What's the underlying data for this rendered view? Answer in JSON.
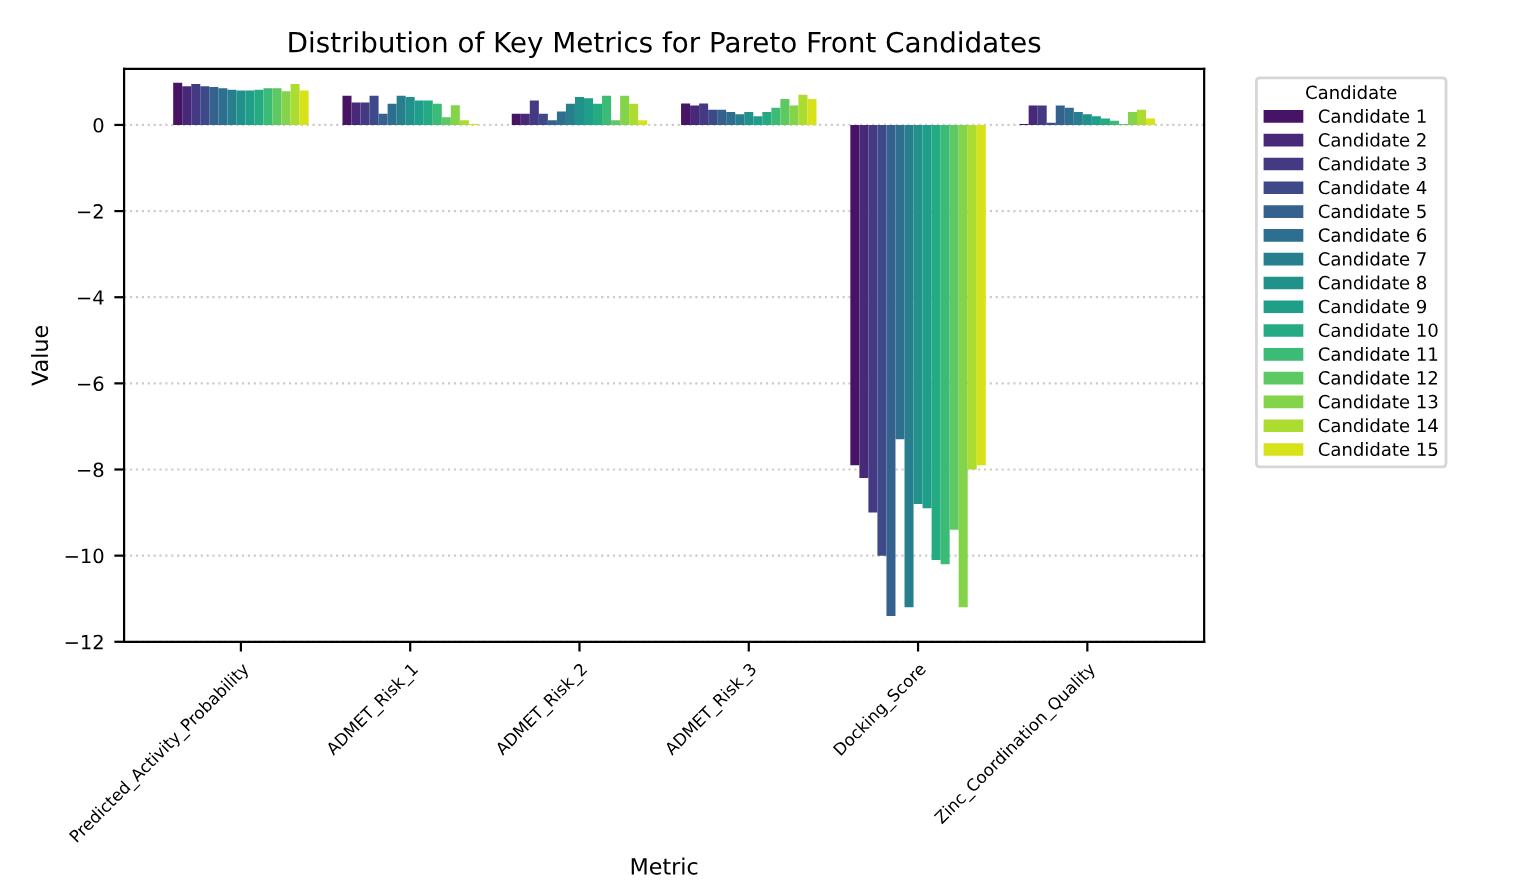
{
  "chart_data": {
    "type": "bar",
    "title": "Distribution of Key Metrics for Pareto Front Candidates",
    "xlabel": "Metric",
    "ylabel": "Value",
    "legend_title": "Candidate",
    "categories": [
      "Predicted_Activity_Probability",
      "ADMET_Risk_1",
      "ADMET_Risk_2",
      "ADMET_Risk_3",
      "Docking_Score",
      "Zinc_Coordination_Quality"
    ],
    "series": [
      {
        "name": "Candidate 1",
        "color": "#471365",
        "values": [
          0.98,
          0.68,
          0.26,
          0.5,
          -7.9,
          0.02
        ]
      },
      {
        "name": "Candidate 2",
        "color": "#482878",
        "values": [
          0.9,
          0.52,
          0.26,
          0.45,
          -8.2,
          0.45
        ]
      },
      {
        "name": "Candidate 3",
        "color": "#443983",
        "values": [
          0.95,
          0.52,
          0.57,
          0.5,
          -9.0,
          0.45
        ]
      },
      {
        "name": "Candidate 4",
        "color": "#3e4989",
        "values": [
          0.9,
          0.68,
          0.26,
          0.35,
          -10.0,
          0.05
        ]
      },
      {
        "name": "Candidate 5",
        "color": "#34618d",
        "values": [
          0.88,
          0.26,
          0.11,
          0.35,
          -11.4,
          0.45
        ]
      },
      {
        "name": "Candidate 6",
        "color": "#2e6e8e",
        "values": [
          0.85,
          0.49,
          0.31,
          0.3,
          -7.3,
          0.4
        ]
      },
      {
        "name": "Candidate 7",
        "color": "#277f8e",
        "values": [
          0.82,
          0.68,
          0.49,
          0.25,
          -11.2,
          0.3
        ]
      },
      {
        "name": "Candidate 8",
        "color": "#21918c",
        "values": [
          0.8,
          0.65,
          0.65,
          0.3,
          -8.8,
          0.25
        ]
      },
      {
        "name": "Candidate 9",
        "color": "#1f9e89",
        "values": [
          0.8,
          0.57,
          0.62,
          0.2,
          -8.9,
          0.2
        ]
      },
      {
        "name": "Candidate 10",
        "color": "#25ab82",
        "values": [
          0.82,
          0.57,
          0.49,
          0.3,
          -10.1,
          0.15
        ]
      },
      {
        "name": "Candidate 11",
        "color": "#3bbb75",
        "values": [
          0.85,
          0.49,
          0.68,
          0.4,
          -10.2,
          0.1
        ]
      },
      {
        "name": "Candidate 12",
        "color": "#5ec962",
        "values": [
          0.85,
          0.18,
          0.11,
          0.6,
          -9.4,
          0.02
        ]
      },
      {
        "name": "Candidate 13",
        "color": "#84d44b",
        "values": [
          0.78,
          0.46,
          0.68,
          0.45,
          -11.2,
          0.3
        ]
      },
      {
        "name": "Candidate 14",
        "color": "#addc30",
        "values": [
          0.95,
          0.11,
          0.49,
          0.7,
          -8.0,
          0.35
        ]
      },
      {
        "name": "Candidate 15",
        "color": "#d8e219",
        "values": [
          0.8,
          0.02,
          0.11,
          0.6,
          -7.9,
          0.15
        ]
      }
    ],
    "ylim": [
      -12,
      1.3
    ],
    "yticks": [
      {
        "value": -12,
        "label": "−12"
      },
      {
        "value": -10,
        "label": "−10"
      },
      {
        "value": -8,
        "label": "−8"
      },
      {
        "value": -6,
        "label": "−6"
      },
      {
        "value": -4,
        "label": "−4"
      },
      {
        "value": -2,
        "label": "−2"
      },
      0
    ],
    "grid": "y",
    "legend": "top right"
  }
}
